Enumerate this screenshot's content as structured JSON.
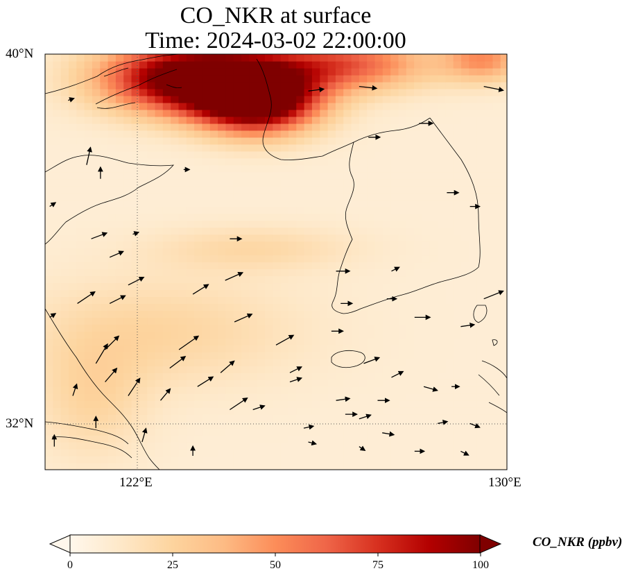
{
  "map": {
    "title": "CO_NKR at surface",
    "subtitle": "Time: 2024-03-02 22:00:00",
    "lat_labels": [
      "40°N",
      "32°N"
    ],
    "lon_labels": [
      "122°E",
      "130°E"
    ],
    "extent": {
      "lon_min": 120,
      "lon_max": 130,
      "lat_min": 31,
      "lat_max": 40
    },
    "gridlines": {
      "lons": [
        122,
        130
      ],
      "lats": [
        32,
        40
      ],
      "style": "dotted"
    },
    "projection": "PlateCarree"
  },
  "colorbar": {
    "label": "CO_NKR (ppbv)",
    "ticks": [
      "0",
      "25",
      "50",
      "75",
      "100"
    ],
    "min": 0,
    "max": 100,
    "extend": "both",
    "colormap": "OrRd",
    "stops": [
      "#fff7ec",
      "#fee8c8",
      "#fdd49e",
      "#fdbb84",
      "#fc8d59",
      "#ef6548",
      "#d7301f",
      "#b30000",
      "#7f0000"
    ]
  },
  "field": {
    "variable": "CO_NKR",
    "units": "ppbv",
    "hotspots": [
      {
        "lon": 123.2,
        "lat": 39.5,
        "value": 110,
        "sx": 1.9,
        "sy": 0.75
      },
      {
        "lon": 124.6,
        "lat": 39.0,
        "value": 105,
        "sx": 1.3,
        "sy": 0.7
      },
      {
        "lon": 126.5,
        "lat": 39.8,
        "value": 55,
        "sx": 1.8,
        "sy": 0.6
      },
      {
        "lon": 129.5,
        "lat": 39.9,
        "value": 40,
        "sx": 0.9,
        "sy": 0.5
      },
      {
        "lon": 124.5,
        "lat": 35.8,
        "value": 14,
        "sx": 2.2,
        "sy": 0.5
      },
      {
        "lon": 122.5,
        "lat": 34.0,
        "value": 16,
        "sx": 3.0,
        "sy": 1.2
      },
      {
        "lon": 121.0,
        "lat": 32.5,
        "value": 15,
        "sx": 1.2,
        "sy": 1.3
      }
    ],
    "background_value": 8
  },
  "wind_vectors": [
    {
      "lon": 120.5,
      "lat": 39.0,
      "u": 0.3,
      "v": 0.1
    },
    {
      "lon": 120.9,
      "lat": 37.6,
      "u": 0.2,
      "v": 0.9
    },
    {
      "lon": 121.2,
      "lat": 37.3,
      "u": 0.0,
      "v": 0.6
    },
    {
      "lon": 123.0,
      "lat": 37.5,
      "u": 0.3,
      "v": 0.0
    },
    {
      "lon": 125.7,
      "lat": 39.2,
      "u": 0.8,
      "v": 0.1
    },
    {
      "lon": 126.8,
      "lat": 39.3,
      "u": 0.9,
      "v": -0.1
    },
    {
      "lon": 127.0,
      "lat": 38.2,
      "u": 0.6,
      "v": 0.0
    },
    {
      "lon": 128.1,
      "lat": 38.5,
      "u": 0.7,
      "v": 0.0
    },
    {
      "lon": 129.5,
      "lat": 39.3,
      "u": 1.0,
      "v": -0.2
    },
    {
      "lon": 128.7,
      "lat": 37.0,
      "u": 0.6,
      "v": 0.0
    },
    {
      "lon": 129.2,
      "lat": 36.7,
      "u": 0.5,
      "v": 0.0
    },
    {
      "lon": 121.0,
      "lat": 36.0,
      "u": 0.8,
      "v": 0.3
    },
    {
      "lon": 121.4,
      "lat": 35.6,
      "u": 0.7,
      "v": 0.3
    },
    {
      "lon": 121.8,
      "lat": 35.0,
      "u": 0.8,
      "v": 0.4
    },
    {
      "lon": 120.7,
      "lat": 34.6,
      "u": 0.9,
      "v": 0.6
    },
    {
      "lon": 121.4,
      "lat": 34.6,
      "u": 0.8,
      "v": 0.4
    },
    {
      "lon": 123.9,
      "lat": 35.1,
      "u": 0.9,
      "v": 0.4
    },
    {
      "lon": 126.3,
      "lat": 35.3,
      "u": 0.7,
      "v": 0.0
    },
    {
      "lon": 127.5,
      "lat": 35.3,
      "u": 0.4,
      "v": 0.2
    },
    {
      "lon": 126.2,
      "lat": 34.0,
      "u": 0.6,
      "v": 0.0
    },
    {
      "lon": 127.4,
      "lat": 34.7,
      "u": 0.5,
      "v": 0.0
    },
    {
      "lon": 128.0,
      "lat": 34.3,
      "u": 0.8,
      "v": 0.0
    },
    {
      "lon": 129.5,
      "lat": 34.7,
      "u": 1.0,
      "v": 0.4
    },
    {
      "lon": 129.0,
      "lat": 34.1,
      "u": 0.7,
      "v": 0.1
    },
    {
      "lon": 123.2,
      "lat": 34.8,
      "u": 0.8,
      "v": 0.5
    },
    {
      "lon": 124.1,
      "lat": 34.2,
      "u": 0.9,
      "v": 0.4
    },
    {
      "lon": 122.9,
      "lat": 33.6,
      "u": 1.0,
      "v": 0.7
    },
    {
      "lon": 125.0,
      "lat": 33.7,
      "u": 0.9,
      "v": 0.5
    },
    {
      "lon": 121.3,
      "lat": 33.6,
      "u": 0.7,
      "v": 0.7
    },
    {
      "lon": 122.7,
      "lat": 33.2,
      "u": 0.8,
      "v": 0.6
    },
    {
      "lon": 123.3,
      "lat": 32.8,
      "u": 0.8,
      "v": 0.5
    },
    {
      "lon": 124.0,
      "lat": 32.3,
      "u": 0.9,
      "v": 0.6
    },
    {
      "lon": 121.3,
      "lat": 32.9,
      "u": 0.6,
      "v": 0.7
    },
    {
      "lon": 121.8,
      "lat": 32.6,
      "u": 0.6,
      "v": 0.9
    },
    {
      "lon": 120.6,
      "lat": 32.6,
      "u": 0.2,
      "v": 0.6
    },
    {
      "lon": 121.1,
      "lat": 33.3,
      "u": 0.6,
      "v": 1.0
    },
    {
      "lon": 122.5,
      "lat": 32.5,
      "u": 0.5,
      "v": 0.6
    },
    {
      "lon": 123.8,
      "lat": 33.1,
      "u": 0.7,
      "v": 0.6
    },
    {
      "lon": 125.3,
      "lat": 32.9,
      "u": 0.6,
      "v": 0.2
    },
    {
      "lon": 126.9,
      "lat": 33.3,
      "u": 0.8,
      "v": 0.3
    },
    {
      "lon": 127.5,
      "lat": 33.0,
      "u": 0.6,
      "v": 0.3
    },
    {
      "lon": 125.3,
      "lat": 33.1,
      "u": 0.6,
      "v": 0.3
    },
    {
      "lon": 126.3,
      "lat": 32.5,
      "u": 0.7,
      "v": 0.1
    },
    {
      "lon": 126.8,
      "lat": 32.1,
      "u": 0.6,
      "v": 0.2
    },
    {
      "lon": 127.2,
      "lat": 32.5,
      "u": 0.6,
      "v": 0.0
    },
    {
      "lon": 128.2,
      "lat": 32.8,
      "u": 0.7,
      "v": -0.2
    },
    {
      "lon": 128.8,
      "lat": 32.8,
      "u": 0.4,
      "v": 0.0
    },
    {
      "lon": 129.2,
      "lat": 32.0,
      "u": 0.5,
      "v": -0.2
    },
    {
      "lon": 127.3,
      "lat": 31.8,
      "u": 0.6,
      "v": -0.1
    },
    {
      "lon": 128.5,
      "lat": 32.0,
      "u": 0.5,
      "v": 0.1
    },
    {
      "lon": 125.6,
      "lat": 31.9,
      "u": 0.5,
      "v": 0.1
    },
    {
      "lon": 124.5,
      "lat": 32.3,
      "u": 0.6,
      "v": 0.2
    },
    {
      "lon": 122.1,
      "lat": 31.6,
      "u": 0.2,
      "v": 0.7
    },
    {
      "lon": 121.1,
      "lat": 31.9,
      "u": 0.0,
      "v": 0.6
    },
    {
      "lon": 120.2,
      "lat": 31.5,
      "u": 0.0,
      "v": 0.6
    },
    {
      "lon": 123.2,
      "lat": 31.3,
      "u": 0.0,
      "v": 0.5
    },
    {
      "lon": 125.7,
      "lat": 31.6,
      "u": 0.4,
      "v": -0.1
    },
    {
      "lon": 126.5,
      "lat": 32.2,
      "u": 0.6,
      "v": 0.0
    },
    {
      "lon": 128.0,
      "lat": 31.4,
      "u": 0.5,
      "v": 0.0
    },
    {
      "lon": 129.0,
      "lat": 31.4,
      "u": 0.4,
      "v": -0.2
    },
    {
      "lon": 126.8,
      "lat": 31.5,
      "u": 0.3,
      "v": -0.2
    },
    {
      "lon": 120.1,
      "lat": 34.3,
      "u": 0.3,
      "v": 0.2
    },
    {
      "lon": 120.1,
      "lat": 36.7,
      "u": 0.3,
      "v": 0.2
    },
    {
      "lon": 121.9,
      "lat": 36.1,
      "u": 0.3,
      "v": 0.1
    },
    {
      "lon": 124.0,
      "lat": 36.0,
      "u": 0.6,
      "v": 0.0
    },
    {
      "lon": 126.4,
      "lat": 34.6,
      "u": 0.6,
      "v": 0.0
    }
  ]
}
